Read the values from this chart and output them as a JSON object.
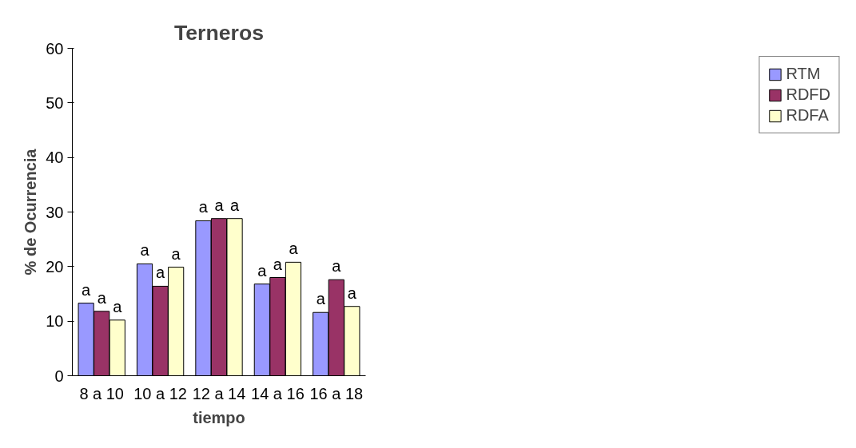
{
  "chart_data": {
    "type": "bar",
    "title": "Terneros",
    "xlabel": "tiempo",
    "ylabel": "% de Ocurrencia",
    "categories": [
      "8 a 10",
      "10 a 12",
      "12 a 14",
      "14 a 16",
      "16 a 18"
    ],
    "series": [
      {
        "name": "RTM",
        "color": "#9999ff",
        "values": [
          13.3,
          20.5,
          28.4,
          16.8,
          11.6
        ],
        "value_labels": [
          "a",
          "a",
          "a",
          "a",
          "a"
        ]
      },
      {
        "name": "RDFD",
        "color": "#993366",
        "values": [
          11.8,
          16.4,
          28.8,
          18.0,
          17.6
        ],
        "value_labels": [
          "a",
          "a",
          "a",
          "a",
          "a"
        ]
      },
      {
        "name": "RDFA",
        "color": "#ffffcc",
        "values": [
          10.2,
          19.9,
          28.8,
          20.8,
          12.7
        ],
        "value_labels": [
          "a",
          "a",
          "a",
          "a",
          "a"
        ]
      }
    ],
    "ylim": [
      0,
      60
    ],
    "yticks": [
      0,
      10,
      20,
      30,
      40,
      50,
      60
    ],
    "grid": false,
    "legend": "right"
  }
}
